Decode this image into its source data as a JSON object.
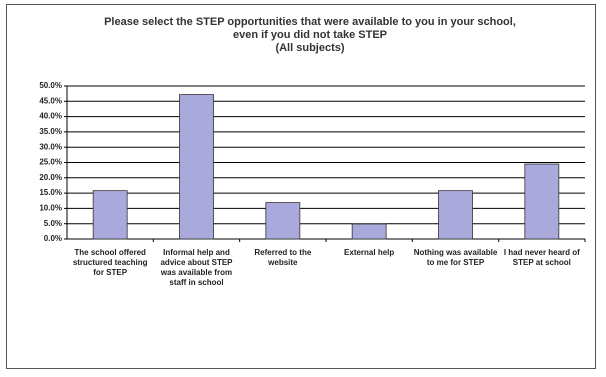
{
  "chart_data": {
    "type": "bar",
    "title": "Please select the STEP opportunities that were available to you in your school,\neven if you did not take STEP\n(All subjects)",
    "categories": [
      "The school offered structured teaching for STEP",
      "Informal help and advice about STEP was available from staff in school",
      "Referred to the website",
      "External help",
      "Nothing was available to me for STEP",
      "I had never heard of STEP at school"
    ],
    "values": [
      15.8,
      47.2,
      11.9,
      4.9,
      15.8,
      24.5
    ],
    "color": "#a9a9dc",
    "ylim": [
      0,
      50
    ],
    "yticks": [
      {
        "value": 0,
        "label": "0.0%"
      },
      {
        "value": 5,
        "label": "5.0%"
      },
      {
        "value": 10,
        "label": "10.0%"
      },
      {
        "value": 15,
        "label": "15.0%"
      },
      {
        "value": 20,
        "label": "20.0%"
      },
      {
        "value": 25,
        "label": "25.0%"
      },
      {
        "value": 30,
        "label": "30.0%"
      },
      {
        "value": 35,
        "label": "35.0%"
      },
      {
        "value": 40,
        "label": "40.0%"
      },
      {
        "value": 45,
        "label": "45.0%"
      },
      {
        "value": 50,
        "label": "50.0%"
      }
    ],
    "grid": true
  }
}
